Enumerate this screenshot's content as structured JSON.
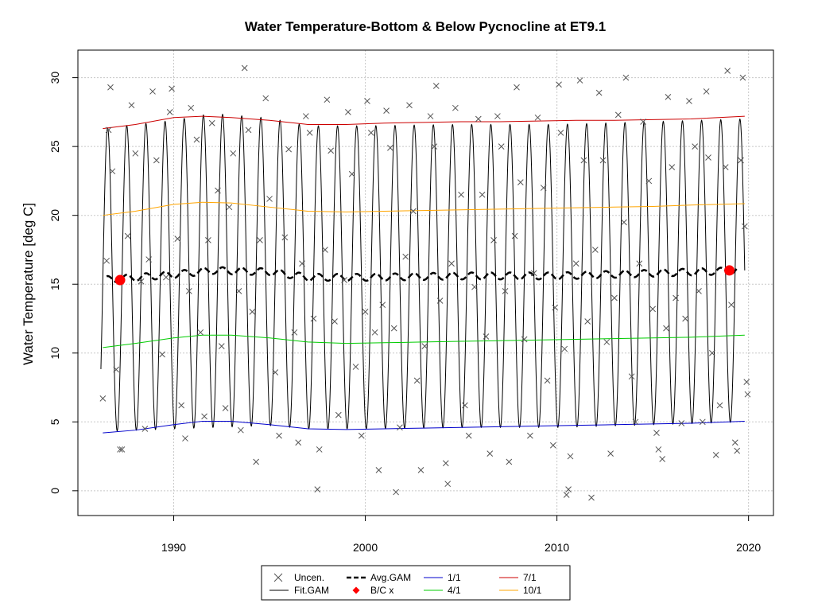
{
  "chart_data": {
    "type": "line",
    "title": "Water Temperature-Bottom & Below Pycnocline at ET9.1",
    "xlabel": "",
    "ylabel": "Water Temperature [deg C]",
    "xlim": [
      1985,
      2021.3
    ],
    "ylim": [
      -1.8,
      32
    ],
    "x_ticks": [
      1990,
      2000,
      2010,
      2020
    ],
    "y_ticks": [
      0,
      5,
      10,
      15,
      20,
      25,
      30
    ],
    "grid": true,
    "legend_position": "bottom-center",
    "seasonal_fit": {
      "start": 1986.2,
      "end": 2019.8,
      "peak_phase": 0.55,
      "baseline_values": [
        [
          1986.2,
          15.3
        ],
        [
          1990,
          15.7
        ],
        [
          1992,
          16.0
        ],
        [
          1995,
          15.9
        ],
        [
          1997,
          15.5
        ],
        [
          2000,
          15.5
        ],
        [
          2005,
          15.6
        ],
        [
          2010,
          15.6
        ],
        [
          2015,
          15.8
        ],
        [
          2019.8,
          16.0
        ]
      ],
      "amplitude_values": [
        [
          1986.2,
          11.0
        ],
        [
          1990,
          11.2
        ],
        [
          1992,
          11.4
        ],
        [
          1997,
          11.0
        ],
        [
          2005,
          11.0
        ],
        [
          2010,
          11.0
        ],
        [
          2015,
          11.0
        ],
        [
          2019.8,
          11.0
        ]
      ]
    },
    "series": [
      {
        "name": "Uncen.",
        "kind": "points",
        "color": "#555555",
        "values": [
          [
            1986.3,
            6.7
          ],
          [
            1986.5,
            16.7
          ],
          [
            1986.6,
            26.2
          ],
          [
            1986.7,
            29.3
          ],
          [
            1986.8,
            23.2
          ],
          [
            1987.0,
            8.8
          ],
          [
            1987.2,
            3.0
          ],
          [
            1987.3,
            3.0
          ],
          [
            1987.6,
            18.5
          ],
          [
            1987.8,
            28.0
          ],
          [
            1988.0,
            24.5
          ],
          [
            1988.3,
            15.2
          ],
          [
            1988.5,
            4.5
          ],
          [
            1988.7,
            16.8
          ],
          [
            1988.9,
            29.0
          ],
          [
            1989.1,
            24.0
          ],
          [
            1989.4,
            9.9
          ],
          [
            1989.6,
            15.5
          ],
          [
            1989.8,
            27.5
          ],
          [
            1989.9,
            29.2
          ],
          [
            1990.2,
            18.3
          ],
          [
            1990.4,
            6.2
          ],
          [
            1990.6,
            3.8
          ],
          [
            1990.8,
            14.5
          ],
          [
            1990.9,
            27.8
          ],
          [
            1991.2,
            25.5
          ],
          [
            1991.4,
            11.5
          ],
          [
            1991.6,
            5.4
          ],
          [
            1991.8,
            18.2
          ],
          [
            1992.0,
            26.7
          ],
          [
            1992.3,
            21.8
          ],
          [
            1992.5,
            10.5
          ],
          [
            1992.7,
            6.0
          ],
          [
            1992.9,
            20.6
          ],
          [
            1993.1,
            24.5
          ],
          [
            1993.4,
            14.5
          ],
          [
            1993.5,
            4.4
          ],
          [
            1993.7,
            30.7
          ],
          [
            1993.9,
            26.2
          ],
          [
            1994.1,
            13.0
          ],
          [
            1994.3,
            2.1
          ],
          [
            1994.5,
            18.2
          ],
          [
            1994.8,
            28.5
          ],
          [
            1995.0,
            21.2
          ],
          [
            1995.3,
            8.6
          ],
          [
            1995.5,
            4.0
          ],
          [
            1995.8,
            18.4
          ],
          [
            1996.0,
            24.8
          ],
          [
            1996.3,
            11.5
          ],
          [
            1996.5,
            3.5
          ],
          [
            1996.7,
            16.5
          ],
          [
            1996.9,
            27.2
          ],
          [
            1997.1,
            26.0
          ],
          [
            1997.3,
            12.5
          ],
          [
            1997.5,
            0.1
          ],
          [
            1997.6,
            3.0
          ],
          [
            1997.9,
            17.5
          ],
          [
            1998.0,
            28.4
          ],
          [
            1998.2,
            24.7
          ],
          [
            1998.4,
            12.3
          ],
          [
            1998.6,
            5.5
          ],
          [
            1998.9,
            15.3
          ],
          [
            1999.1,
            27.5
          ],
          [
            1999.3,
            23.0
          ],
          [
            1999.5,
            9.0
          ],
          [
            1999.8,
            4.0
          ],
          [
            2000.0,
            13.0
          ],
          [
            2000.1,
            28.3
          ],
          [
            2000.3,
            26.0
          ],
          [
            2000.5,
            11.5
          ],
          [
            2000.7,
            1.5
          ],
          [
            2000.9,
            13.5
          ],
          [
            2001.1,
            27.6
          ],
          [
            2001.3,
            24.9
          ],
          [
            2001.5,
            11.8
          ],
          [
            2001.6,
            -0.1
          ],
          [
            2001.8,
            4.6
          ],
          [
            2002.1,
            17.0
          ],
          [
            2002.3,
            28.0
          ],
          [
            2002.5,
            20.3
          ],
          [
            2002.7,
            8.0
          ],
          [
            2002.9,
            1.5
          ],
          [
            2003.1,
            10.5
          ],
          [
            2003.4,
            27.2
          ],
          [
            2003.6,
            25.0
          ],
          [
            2003.7,
            29.4
          ],
          [
            2003.9,
            13.8
          ],
          [
            2004.2,
            2.0
          ],
          [
            2004.3,
            0.5
          ],
          [
            2004.5,
            16.5
          ],
          [
            2004.7,
            27.8
          ],
          [
            2005.0,
            21.5
          ],
          [
            2005.2,
            6.2
          ],
          [
            2005.4,
            4.0
          ],
          [
            2005.7,
            14.8
          ],
          [
            2005.9,
            27.0
          ],
          [
            2006.1,
            21.5
          ],
          [
            2006.3,
            11.2
          ],
          [
            2006.5,
            2.7
          ],
          [
            2006.7,
            18.2
          ],
          [
            2006.9,
            27.2
          ],
          [
            2007.1,
            25.0
          ],
          [
            2007.3,
            14.5
          ],
          [
            2007.5,
            2.1
          ],
          [
            2007.8,
            18.5
          ],
          [
            2007.9,
            29.3
          ],
          [
            2008.1,
            22.4
          ],
          [
            2008.3,
            11.0
          ],
          [
            2008.6,
            4.0
          ],
          [
            2008.8,
            15.8
          ],
          [
            2009.0,
            27.1
          ],
          [
            2009.3,
            22.0
          ],
          [
            2009.5,
            8.0
          ],
          [
            2009.8,
            3.3
          ],
          [
            2009.9,
            13.3
          ],
          [
            2010.1,
            29.5
          ],
          [
            2010.2,
            26.0
          ],
          [
            2010.4,
            10.3
          ],
          [
            2010.5,
            -0.3
          ],
          [
            2010.6,
            0.1
          ],
          [
            2010.7,
            2.5
          ],
          [
            2011.0,
            16.5
          ],
          [
            2011.2,
            29.8
          ],
          [
            2011.4,
            24.0
          ],
          [
            2011.6,
            12.3
          ],
          [
            2011.8,
            -0.5
          ],
          [
            2012.0,
            17.5
          ],
          [
            2012.2,
            28.9
          ],
          [
            2012.4,
            24.0
          ],
          [
            2012.6,
            10.8
          ],
          [
            2012.8,
            2.7
          ],
          [
            2013.0,
            14.0
          ],
          [
            2013.2,
            27.3
          ],
          [
            2013.5,
            19.5
          ],
          [
            2013.6,
            30.0
          ],
          [
            2013.9,
            8.3
          ],
          [
            2014.1,
            5.0
          ],
          [
            2014.3,
            16.5
          ],
          [
            2014.5,
            26.8
          ],
          [
            2014.8,
            22.5
          ],
          [
            2015.0,
            13.2
          ],
          [
            2015.2,
            4.2
          ],
          [
            2015.3,
            3.0
          ],
          [
            2015.5,
            2.3
          ],
          [
            2015.7,
            11.8
          ],
          [
            2015.8,
            28.6
          ],
          [
            2016.0,
            23.5
          ],
          [
            2016.2,
            14.0
          ],
          [
            2016.5,
            4.9
          ],
          [
            2016.7,
            12.5
          ],
          [
            2016.9,
            28.3
          ],
          [
            2017.2,
            25.0
          ],
          [
            2017.4,
            14.5
          ],
          [
            2017.6,
            5.0
          ],
          [
            2017.8,
            29.0
          ],
          [
            2017.9,
            24.2
          ],
          [
            2018.1,
            10.0
          ],
          [
            2018.3,
            2.6
          ],
          [
            2018.5,
            6.2
          ],
          [
            2018.8,
            23.5
          ],
          [
            2018.9,
            30.5
          ],
          [
            2019.1,
            13.5
          ],
          [
            2019.3,
            3.5
          ],
          [
            2019.4,
            2.9
          ],
          [
            2019.6,
            24.0
          ],
          [
            2019.7,
            30.0
          ],
          [
            2019.8,
            19.2
          ],
          [
            2019.9,
            7.9
          ],
          [
            2019.95,
            7.0
          ]
        ]
      },
      {
        "name": "Fit.GAM",
        "kind": "line",
        "color": "#000000"
      },
      {
        "name": "Avg.GAM",
        "kind": "dashed-line",
        "color": "#000000"
      },
      {
        "name": "B/C x",
        "kind": "dots",
        "color": "#ff0000",
        "values": [
          [
            1987.2,
            15.3
          ],
          [
            2019.0,
            16.0
          ]
        ]
      },
      {
        "name": "1/1",
        "kind": "line",
        "color": "#0000cc",
        "values": [
          [
            1986.3,
            4.2
          ],
          [
            1988.0,
            4.4
          ],
          [
            1990.0,
            4.8
          ],
          [
            1991.5,
            5.05
          ],
          [
            1993.0,
            5.05
          ],
          [
            1995.0,
            4.8
          ],
          [
            1997.0,
            4.5
          ],
          [
            1999.0,
            4.45
          ],
          [
            2001.0,
            4.5
          ],
          [
            2003.0,
            4.55
          ],
          [
            2005.0,
            4.6
          ],
          [
            2007.0,
            4.65
          ],
          [
            2009.0,
            4.7
          ],
          [
            2011.0,
            4.75
          ],
          [
            2013.0,
            4.8
          ],
          [
            2015.0,
            4.85
          ],
          [
            2017.0,
            4.9
          ],
          [
            2019.8,
            5.05
          ]
        ]
      },
      {
        "name": "4/1",
        "kind": "line",
        "color": "#00cc00",
        "values": [
          [
            1986.3,
            10.4
          ],
          [
            1988.0,
            10.7
          ],
          [
            1990.0,
            11.1
          ],
          [
            1991.5,
            11.3
          ],
          [
            1993.0,
            11.3
          ],
          [
            1995.0,
            11.1
          ],
          [
            1997.0,
            10.8
          ],
          [
            1999.0,
            10.7
          ],
          [
            2001.0,
            10.75
          ],
          [
            2003.0,
            10.8
          ],
          [
            2005.0,
            10.85
          ],
          [
            2007.0,
            10.9
          ],
          [
            2009.0,
            10.95
          ],
          [
            2011.0,
            11.0
          ],
          [
            2013.0,
            11.05
          ],
          [
            2015.0,
            11.1
          ],
          [
            2017.0,
            11.15
          ],
          [
            2019.8,
            11.3
          ]
        ]
      },
      {
        "name": "7/1",
        "kind": "line",
        "color": "#cc0000",
        "values": [
          [
            1986.3,
            26.3
          ],
          [
            1988.0,
            26.6
          ],
          [
            1990.0,
            27.1
          ],
          [
            1991.5,
            27.2
          ],
          [
            1993.0,
            27.1
          ],
          [
            1995.0,
            26.9
          ],
          [
            1997.0,
            26.6
          ],
          [
            1999.0,
            26.6
          ],
          [
            2001.0,
            26.7
          ],
          [
            2003.0,
            26.75
          ],
          [
            2005.0,
            26.8
          ],
          [
            2007.0,
            26.8
          ],
          [
            2009.0,
            26.85
          ],
          [
            2011.0,
            26.9
          ],
          [
            2013.0,
            26.9
          ],
          [
            2015.0,
            26.95
          ],
          [
            2017.0,
            27.0
          ],
          [
            2019.8,
            27.2
          ]
        ]
      },
      {
        "name": "10/1",
        "kind": "line",
        "color": "#ffa500",
        "values": [
          [
            1986.3,
            20.0
          ],
          [
            1988.0,
            20.3
          ],
          [
            1990.0,
            20.8
          ],
          [
            1991.5,
            20.95
          ],
          [
            1993.0,
            20.9
          ],
          [
            1995.0,
            20.6
          ],
          [
            1997.0,
            20.3
          ],
          [
            1999.0,
            20.25
          ],
          [
            2001.0,
            20.3
          ],
          [
            2003.0,
            20.35
          ],
          [
            2005.0,
            20.4
          ],
          [
            2007.0,
            20.45
          ],
          [
            2009.0,
            20.5
          ],
          [
            2011.0,
            20.55
          ],
          [
            2013.0,
            20.6
          ],
          [
            2015.0,
            20.65
          ],
          [
            2017.0,
            20.75
          ],
          [
            2019.8,
            20.85
          ]
        ]
      }
    ]
  }
}
